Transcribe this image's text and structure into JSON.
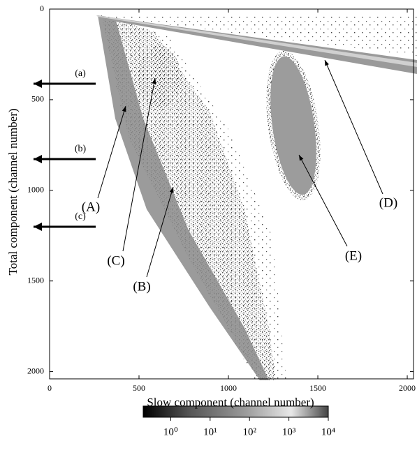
{
  "chart_data": {
    "type": "heatmap",
    "xlabel": "Slow component (channel number)",
    "ylabel": "Total component (channel number)",
    "xlim": [
      0,
      2035
    ],
    "xticks": [
      0,
      500,
      1000,
      1500,
      2000
    ],
    "ylim": [
      2040,
      0
    ],
    "yticks": [
      0,
      500,
      1000,
      1500,
      2000
    ],
    "colorbar": {
      "scale": "log",
      "lim": [
        0.2,
        10000
      ],
      "ticks": [
        {
          "value": 1,
          "label": "10⁰"
        },
        {
          "value": 10,
          "label": "10¹"
        },
        {
          "value": 100,
          "label": "10²"
        },
        {
          "value": 1000,
          "label": "10³"
        },
        {
          "value": 10000,
          "label": "10⁴"
        }
      ]
    },
    "annotations": [
      "(A)",
      "(B)",
      "(C)",
      "(D)",
      "(E)"
    ],
    "side_arrows": [
      "(a)",
      "(b)",
      "(c)"
    ]
  }
}
